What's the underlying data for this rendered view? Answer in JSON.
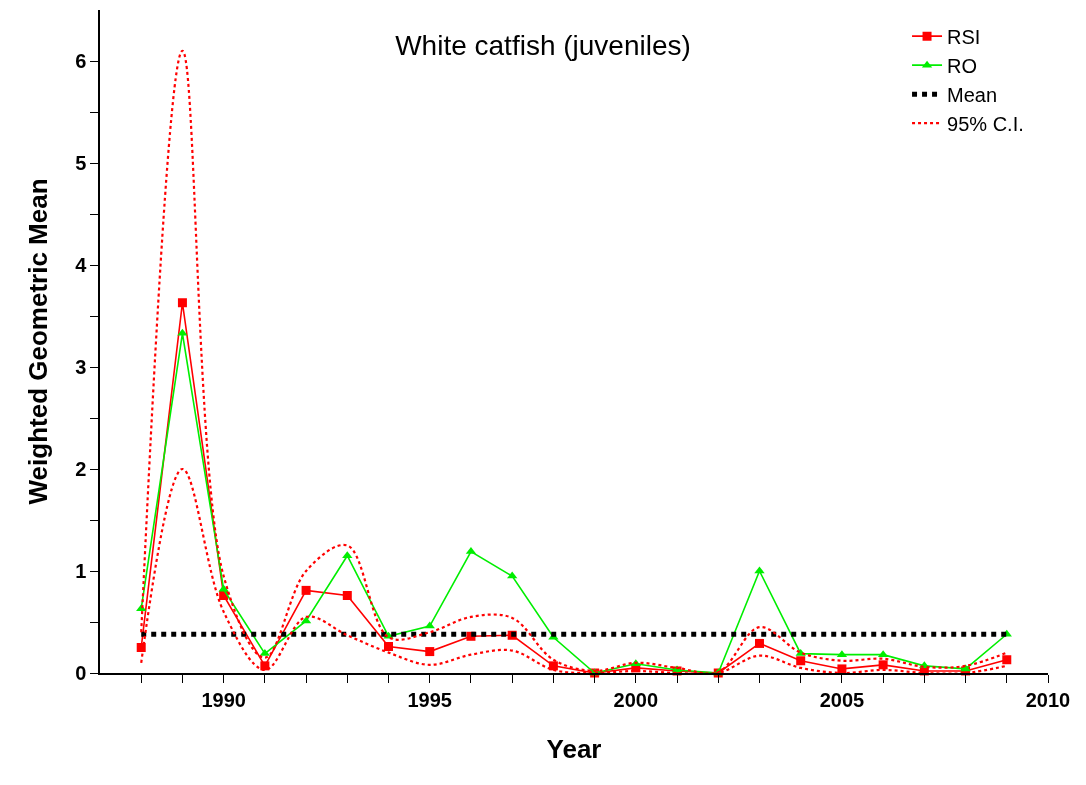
{
  "chart_data": {
    "type": "line",
    "title": "White catfish (juveniles)",
    "xlabel": "Year",
    "ylabel": "Weighted Geometric Mean",
    "x": [
      1988,
      1989,
      1990,
      1991,
      1992,
      1993,
      1994,
      1995,
      1996,
      1997,
      1998,
      1999,
      2000,
      2001,
      2002,
      2003,
      2004,
      2005,
      2006,
      2007,
      2008,
      2009
    ],
    "series": [
      {
        "name": "RSI",
        "color": "#ff0000",
        "marker": "square",
        "line_style": "solid",
        "values": [
          0.25,
          3.63,
          0.76,
          0.07,
          0.81,
          0.76,
          0.26,
          0.21,
          0.36,
          0.37,
          0.07,
          0.0,
          0.05,
          0.02,
          0.0,
          0.29,
          0.12,
          0.04,
          0.08,
          0.02,
          0.02,
          0.13
        ]
      },
      {
        "name": "RO",
        "color": "#00ee00",
        "marker": "triangle",
        "line_style": "solid",
        "values": [
          0.63,
          3.33,
          0.82,
          0.19,
          0.51,
          1.15,
          0.36,
          0.46,
          1.19,
          0.95,
          0.35,
          0.0,
          0.09,
          0.03,
          0.0,
          1.0,
          0.19,
          0.18,
          0.18,
          0.07,
          0.04,
          0.38
        ]
      },
      {
        "name": "Mean",
        "color": "#000000",
        "marker": "none",
        "line_style": "dotted",
        "values": [
          0.38,
          0.38,
          0.38,
          0.38,
          0.38,
          0.38,
          0.38,
          0.38,
          0.38,
          0.38,
          0.38,
          0.38,
          0.38,
          0.38,
          0.38,
          0.38,
          0.38,
          0.38,
          0.38,
          0.38,
          0.38,
          0.38
        ]
      },
      {
        "name": "95% C.I.",
        "color": "#ff0000",
        "marker": "none",
        "line_style": "dotted",
        "values": [
          0.4,
          6.1,
          0.95,
          0.15,
          1.0,
          1.25,
          0.35,
          0.4,
          0.55,
          0.54,
          0.13,
          0.02,
          0.1,
          0.05,
          0.01,
          0.45,
          0.2,
          0.12,
          0.14,
          0.06,
          0.07,
          0.2
        ]
      },
      {
        "color": "#ff0000",
        "marker": "none",
        "line_style": "dotted",
        "values": [
          0.1,
          2.0,
          0.6,
          0.03,
          0.55,
          0.37,
          0.2,
          0.08,
          0.18,
          0.22,
          0.03,
          0.0,
          0.02,
          0.0,
          0.0,
          0.17,
          0.05,
          0.0,
          0.03,
          0.0,
          0.0,
          0.07
        ]
      }
    ],
    "xlim": [
      1987,
      2010
    ],
    "ylim": [
      0,
      6.5
    ],
    "xticks": [
      {
        "value": 1988,
        "label": null
      },
      {
        "value": 1989,
        "label": null
      },
      1990,
      {
        "value": 1991,
        "label": null
      },
      {
        "value": 1992,
        "label": null
      },
      {
        "value": 1993,
        "label": null
      },
      {
        "value": 1994,
        "label": null
      },
      1995,
      {
        "value": 1996,
        "label": null
      },
      {
        "value": 1997,
        "label": null
      },
      {
        "value": 1998,
        "label": null
      },
      {
        "value": 1999,
        "label": null
      },
      2000,
      {
        "value": 2001,
        "label": null
      },
      {
        "value": 2002,
        "label": null
      },
      {
        "value": 2003,
        "label": null
      },
      {
        "value": 2004,
        "label": null
      },
      2005,
      {
        "value": 2006,
        "label": null
      },
      {
        "value": 2007,
        "label": null
      },
      {
        "value": 2008,
        "label": null
      },
      {
        "value": 2009,
        "label": null
      },
      2010
    ],
    "yticks": [
      0,
      {
        "value": 0.5,
        "label": null
      },
      1,
      {
        "value": 1.5,
        "label": null
      },
      2,
      {
        "value": 2.5,
        "label": null
      },
      3,
      {
        "value": 3.5,
        "label": null
      },
      4,
      {
        "value": 4.5,
        "label": null
      },
      5,
      {
        "value": 5.5,
        "label": null
      },
      6
    ],
    "legend": "top right"
  }
}
